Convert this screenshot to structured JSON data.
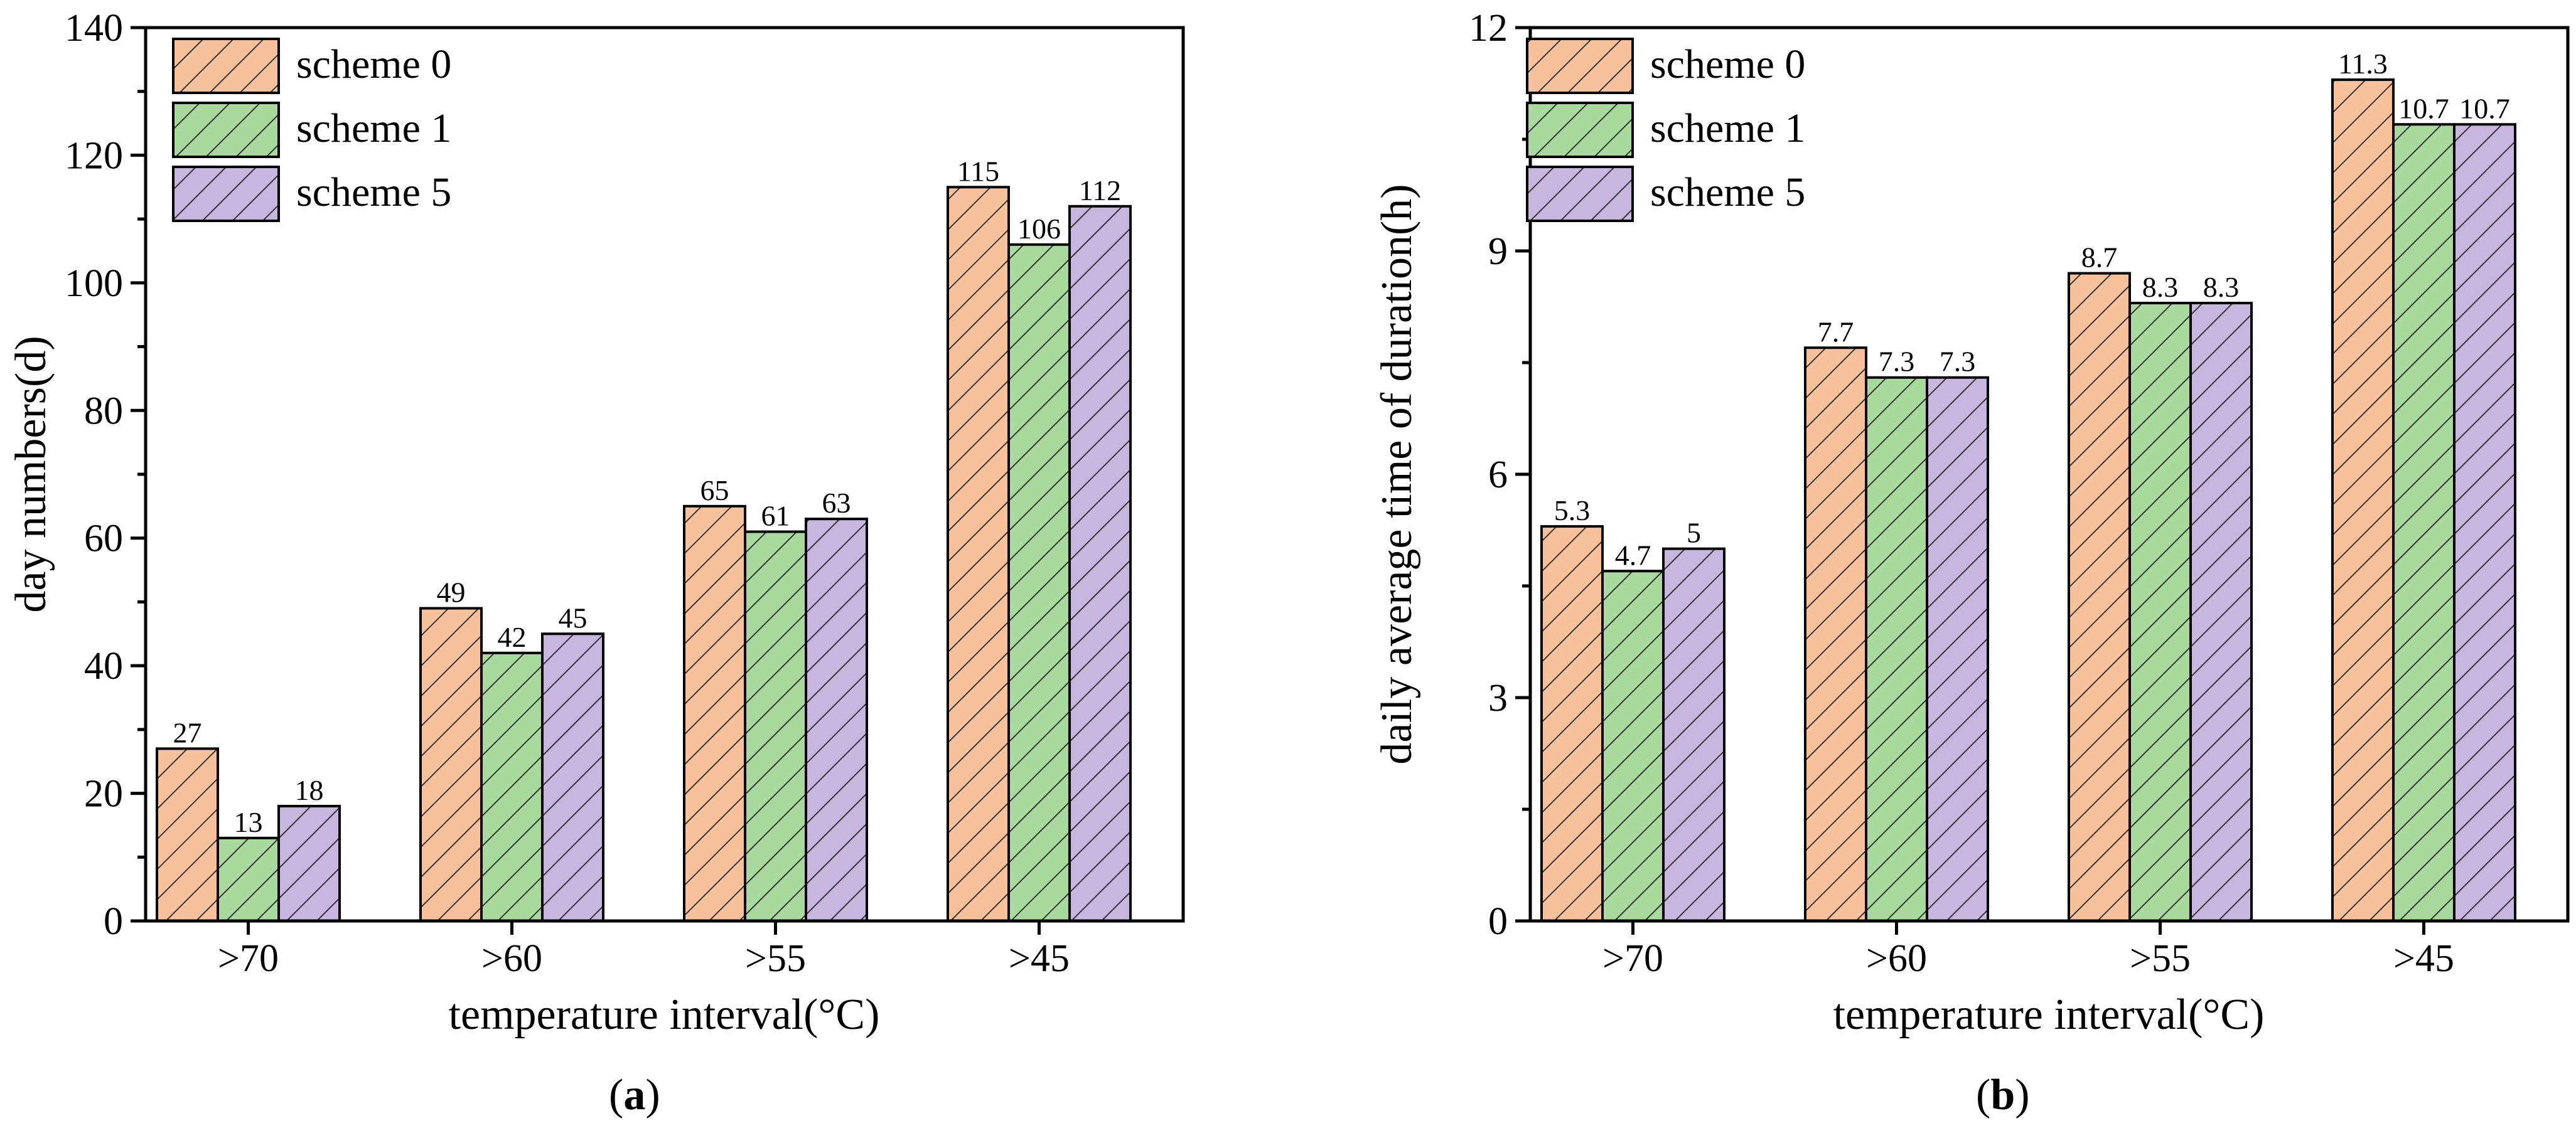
{
  "colors": {
    "scheme0": "#F7C29B",
    "scheme1": "#A7DA9C",
    "scheme5": "#C7B6DE",
    "hatch": "#222222"
  },
  "chart_data": [
    {
      "panel": "a",
      "caption_open": "(",
      "caption_letter": "a",
      "caption_close": ")",
      "type": "bar",
      "categories": [
        ">70",
        ">60",
        ">55",
        ">45"
      ],
      "series": [
        {
          "name": "scheme 0",
          "values": [
            27,
            49,
            65,
            115
          ],
          "labels": [
            "27",
            "49",
            "65",
            "115"
          ]
        },
        {
          "name": "scheme 1",
          "values": [
            13,
            42,
            61,
            106
          ],
          "labels": [
            "13",
            "42",
            "61",
            "106"
          ]
        },
        {
          "name": "scheme 5",
          "values": [
            18,
            45,
            63,
            112
          ],
          "labels": [
            "18",
            "45",
            "63",
            "112"
          ]
        }
      ],
      "xlabel": "temperature interval(°C)",
      "ylabel": "day numbers(d)",
      "ylim": [
        0,
        140
      ],
      "yticks": [
        0,
        20,
        40,
        60,
        80,
        100,
        120,
        140
      ],
      "yminor": 10,
      "legend_position": "top-left"
    },
    {
      "panel": "b",
      "caption_open": "(",
      "caption_letter": "b",
      "caption_close": ")",
      "type": "bar",
      "categories": [
        ">70",
        ">60",
        ">55",
        ">45"
      ],
      "series": [
        {
          "name": "scheme 0",
          "values": [
            5.3,
            7.7,
            8.7,
            11.3
          ],
          "labels": [
            "5.3",
            "7.7",
            "8.7",
            "11.3"
          ]
        },
        {
          "name": "scheme 1",
          "values": [
            4.7,
            7.3,
            8.3,
            10.7
          ],
          "labels": [
            "4.7",
            "7.3",
            "8.3",
            "10.7"
          ]
        },
        {
          "name": "scheme 5",
          "values": [
            5.0,
            7.3,
            8.3,
            10.7
          ],
          "labels": [
            "5",
            "7.3",
            "8.3",
            "10.7"
          ]
        }
      ],
      "xlabel": "temperature interval(°C)",
      "ylabel": "daily average time of duration(h)",
      "ylim": [
        0,
        12
      ],
      "yticks": [
        0,
        3,
        6,
        9,
        12
      ],
      "yminor": 1.5,
      "legend_position": "top-left"
    }
  ]
}
